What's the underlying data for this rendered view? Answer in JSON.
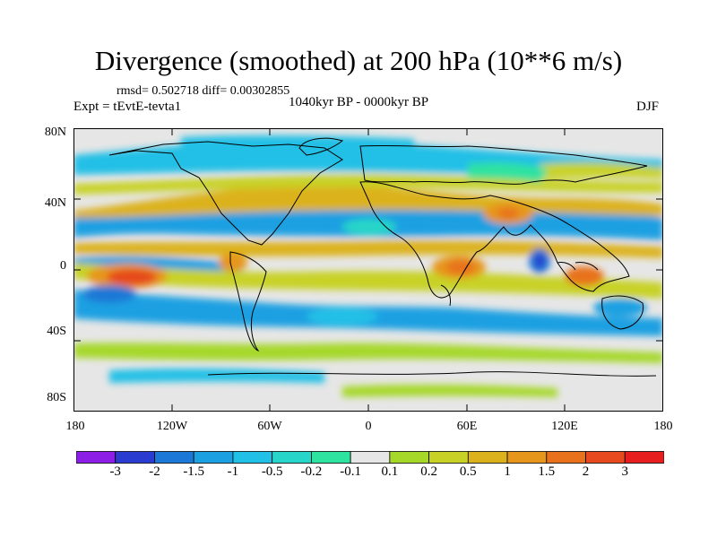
{
  "title": "Divergence (smoothed) at 200 hPa (10**6 m/s)",
  "stats": "rmsd= 0.502718 diff= 0.00302855",
  "experiment": "Expt = tEvtE-tevta1",
  "period": "1040kyr BP - 0000kyr BP",
  "season": "DJF",
  "y_tick_labels": [
    "80N",
    "40N",
    "0",
    "40S",
    "80S"
  ],
  "x_tick_labels": [
    "180",
    "120W",
    "60W",
    "0",
    "60E",
    "120E",
    "180"
  ],
  "colorbar": {
    "colors": [
      "#8d1ee6",
      "#2a3ccf",
      "#1c78d6",
      "#1ba0e2",
      "#21c0e6",
      "#27d6c8",
      "#2ee2a0",
      "#e6e6e6",
      "#a6d82a",
      "#c8d226",
      "#dcb21c",
      "#e6961a",
      "#e8721c",
      "#e64a1e",
      "#e61e1e"
    ],
    "labels": [
      "-3",
      "-2",
      "-1.5",
      "-1",
      "-0.5",
      "-0.2",
      "-0.1",
      "0.1",
      "0.2",
      "0.5",
      "1",
      "1.5",
      "2",
      "3"
    ]
  }
}
